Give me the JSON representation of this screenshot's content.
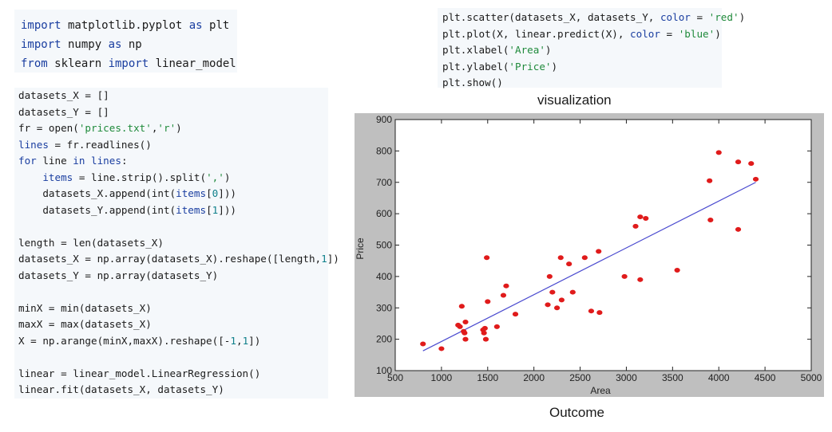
{
  "snippets": {
    "imports": [
      [
        [
          "import",
          "kw"
        ],
        [
          " matplotlib.pyplot ",
          ""
        ],
        [
          "as",
          "kw"
        ],
        [
          " plt",
          ""
        ]
      ],
      [
        [
          "import",
          "kw"
        ],
        [
          " numpy ",
          ""
        ],
        [
          "as",
          "kw"
        ],
        [
          " np",
          ""
        ]
      ],
      [
        [
          "from",
          "kw"
        ],
        [
          " sklearn ",
          ""
        ],
        [
          "import",
          "kw"
        ],
        [
          " linear_model",
          ""
        ]
      ]
    ],
    "main": [
      [
        [
          "datasets_X = []",
          ""
        ]
      ],
      [
        [
          "datasets_Y = []",
          ""
        ]
      ],
      [
        [
          "fr = open(",
          ""
        ],
        [
          "'prices.txt'",
          "str"
        ],
        [
          ",",
          ""
        ],
        [
          "'r'",
          "str"
        ],
        [
          ")",
          ""
        ]
      ],
      [
        [
          "lines",
          "var"
        ],
        [
          " = fr.readlines()",
          ""
        ]
      ],
      [
        [
          "for",
          "kw"
        ],
        [
          " line ",
          ""
        ],
        [
          "in",
          "kw"
        ],
        [
          " ",
          ""
        ],
        [
          "lines",
          "var"
        ],
        [
          ":",
          ""
        ]
      ],
      [
        [
          "    ",
          ""
        ],
        [
          "items",
          "var"
        ],
        [
          " = line.strip().split(",
          ""
        ],
        [
          "','",
          "str"
        ],
        [
          ")",
          ""
        ]
      ],
      [
        [
          "    datasets_X.append(int(",
          ""
        ],
        [
          "items",
          "var"
        ],
        [
          "[",
          ""
        ],
        [
          "0",
          "num"
        ],
        [
          "]))",
          ""
        ]
      ],
      [
        [
          "    datasets_Y.append(int(",
          ""
        ],
        [
          "items",
          "var"
        ],
        [
          "[",
          ""
        ],
        [
          "1",
          "num"
        ],
        [
          "]))",
          ""
        ]
      ],
      [
        [
          "",
          ""
        ]
      ],
      [
        [
          "length = len(datasets_X)",
          ""
        ]
      ],
      [
        [
          "datasets_X = np.array(datasets_X).reshape([length,",
          ""
        ],
        [
          "1",
          "num"
        ],
        [
          "])",
          ""
        ]
      ],
      [
        [
          "datasets_Y = np.array(datasets_Y)",
          ""
        ]
      ],
      [
        [
          "",
          ""
        ]
      ],
      [
        [
          "minX = min(datasets_X)",
          ""
        ]
      ],
      [
        [
          "maxX = max(datasets_X)",
          ""
        ]
      ],
      [
        [
          "X = np.arange(minX,maxX).reshape([-",
          ""
        ],
        [
          "1",
          "num"
        ],
        [
          ",",
          ""
        ],
        [
          "1",
          "num"
        ],
        [
          "])",
          ""
        ]
      ],
      [
        [
          "",
          ""
        ]
      ],
      [
        [
          "linear = linear_model.LinearRegression()",
          ""
        ]
      ],
      [
        [
          "linear.fit(datasets_X, datasets_Y)",
          ""
        ]
      ]
    ],
    "plot": [
      [
        [
          "plt.scatter(datasets_X, datasets_Y, ",
          ""
        ],
        [
          "color",
          "var"
        ],
        [
          " = ",
          ""
        ],
        [
          "'red'",
          "str"
        ],
        [
          ")",
          ""
        ]
      ],
      [
        [
          "plt.plot(X, linear.predict(X), ",
          ""
        ],
        [
          "color",
          "var"
        ],
        [
          " = ",
          ""
        ],
        [
          "'blue'",
          "str"
        ],
        [
          ")",
          ""
        ]
      ],
      [
        [
          "plt.xlabel(",
          ""
        ],
        [
          "'Area'",
          "str"
        ],
        [
          ")",
          ""
        ]
      ],
      [
        [
          "plt.ylabel(",
          ""
        ],
        [
          "'Price'",
          "str"
        ],
        [
          ")",
          ""
        ]
      ],
      [
        [
          "plt.show()",
          ""
        ]
      ]
    ]
  },
  "captions": {
    "visualization": "visualization",
    "outcome": "Outcome"
  },
  "chart_data": {
    "type": "scatter",
    "xlabel": "Area",
    "ylabel": "Price",
    "xlim": [
      500,
      5000
    ],
    "ylim": [
      100,
      900
    ],
    "xticks": [
      500,
      1000,
      1500,
      2000,
      2500,
      3000,
      3500,
      4000,
      4500,
      5000
    ],
    "yticks": [
      100,
      200,
      300,
      400,
      500,
      600,
      700,
      800,
      900
    ],
    "grid": false,
    "series": [
      {
        "type": "scatter",
        "color": "#e01b1b",
        "x": [
          800,
          1000,
          1180,
          1200,
          1220,
          1240,
          1250,
          1260,
          1260,
          1450,
          1460,
          1470,
          1480,
          1490,
          1500,
          1600,
          1670,
          1700,
          1800,
          2150,
          2170,
          2200,
          2250,
          2290,
          2300,
          2380,
          2420,
          2550,
          2620,
          2700,
          2710,
          2980,
          3100,
          3150,
          3150,
          3210,
          3550,
          3900,
          3910,
          4000,
          4210,
          4210,
          4350,
          4400
        ],
        "y": [
          185,
          170,
          245,
          240,
          305,
          225,
          220,
          255,
          200,
          230,
          220,
          235,
          200,
          460,
          320,
          240,
          340,
          370,
          280,
          310,
          400,
          350,
          300,
          460,
          325,
          440,
          350,
          460,
          290,
          480,
          285,
          400,
          560,
          390,
          590,
          585,
          420,
          705,
          580,
          795,
          765,
          550,
          760,
          710
        ]
      },
      {
        "type": "line",
        "color": "#4a4acf",
        "x": [
          800,
          4400
        ],
        "y": [
          163,
          700
        ]
      }
    ]
  }
}
